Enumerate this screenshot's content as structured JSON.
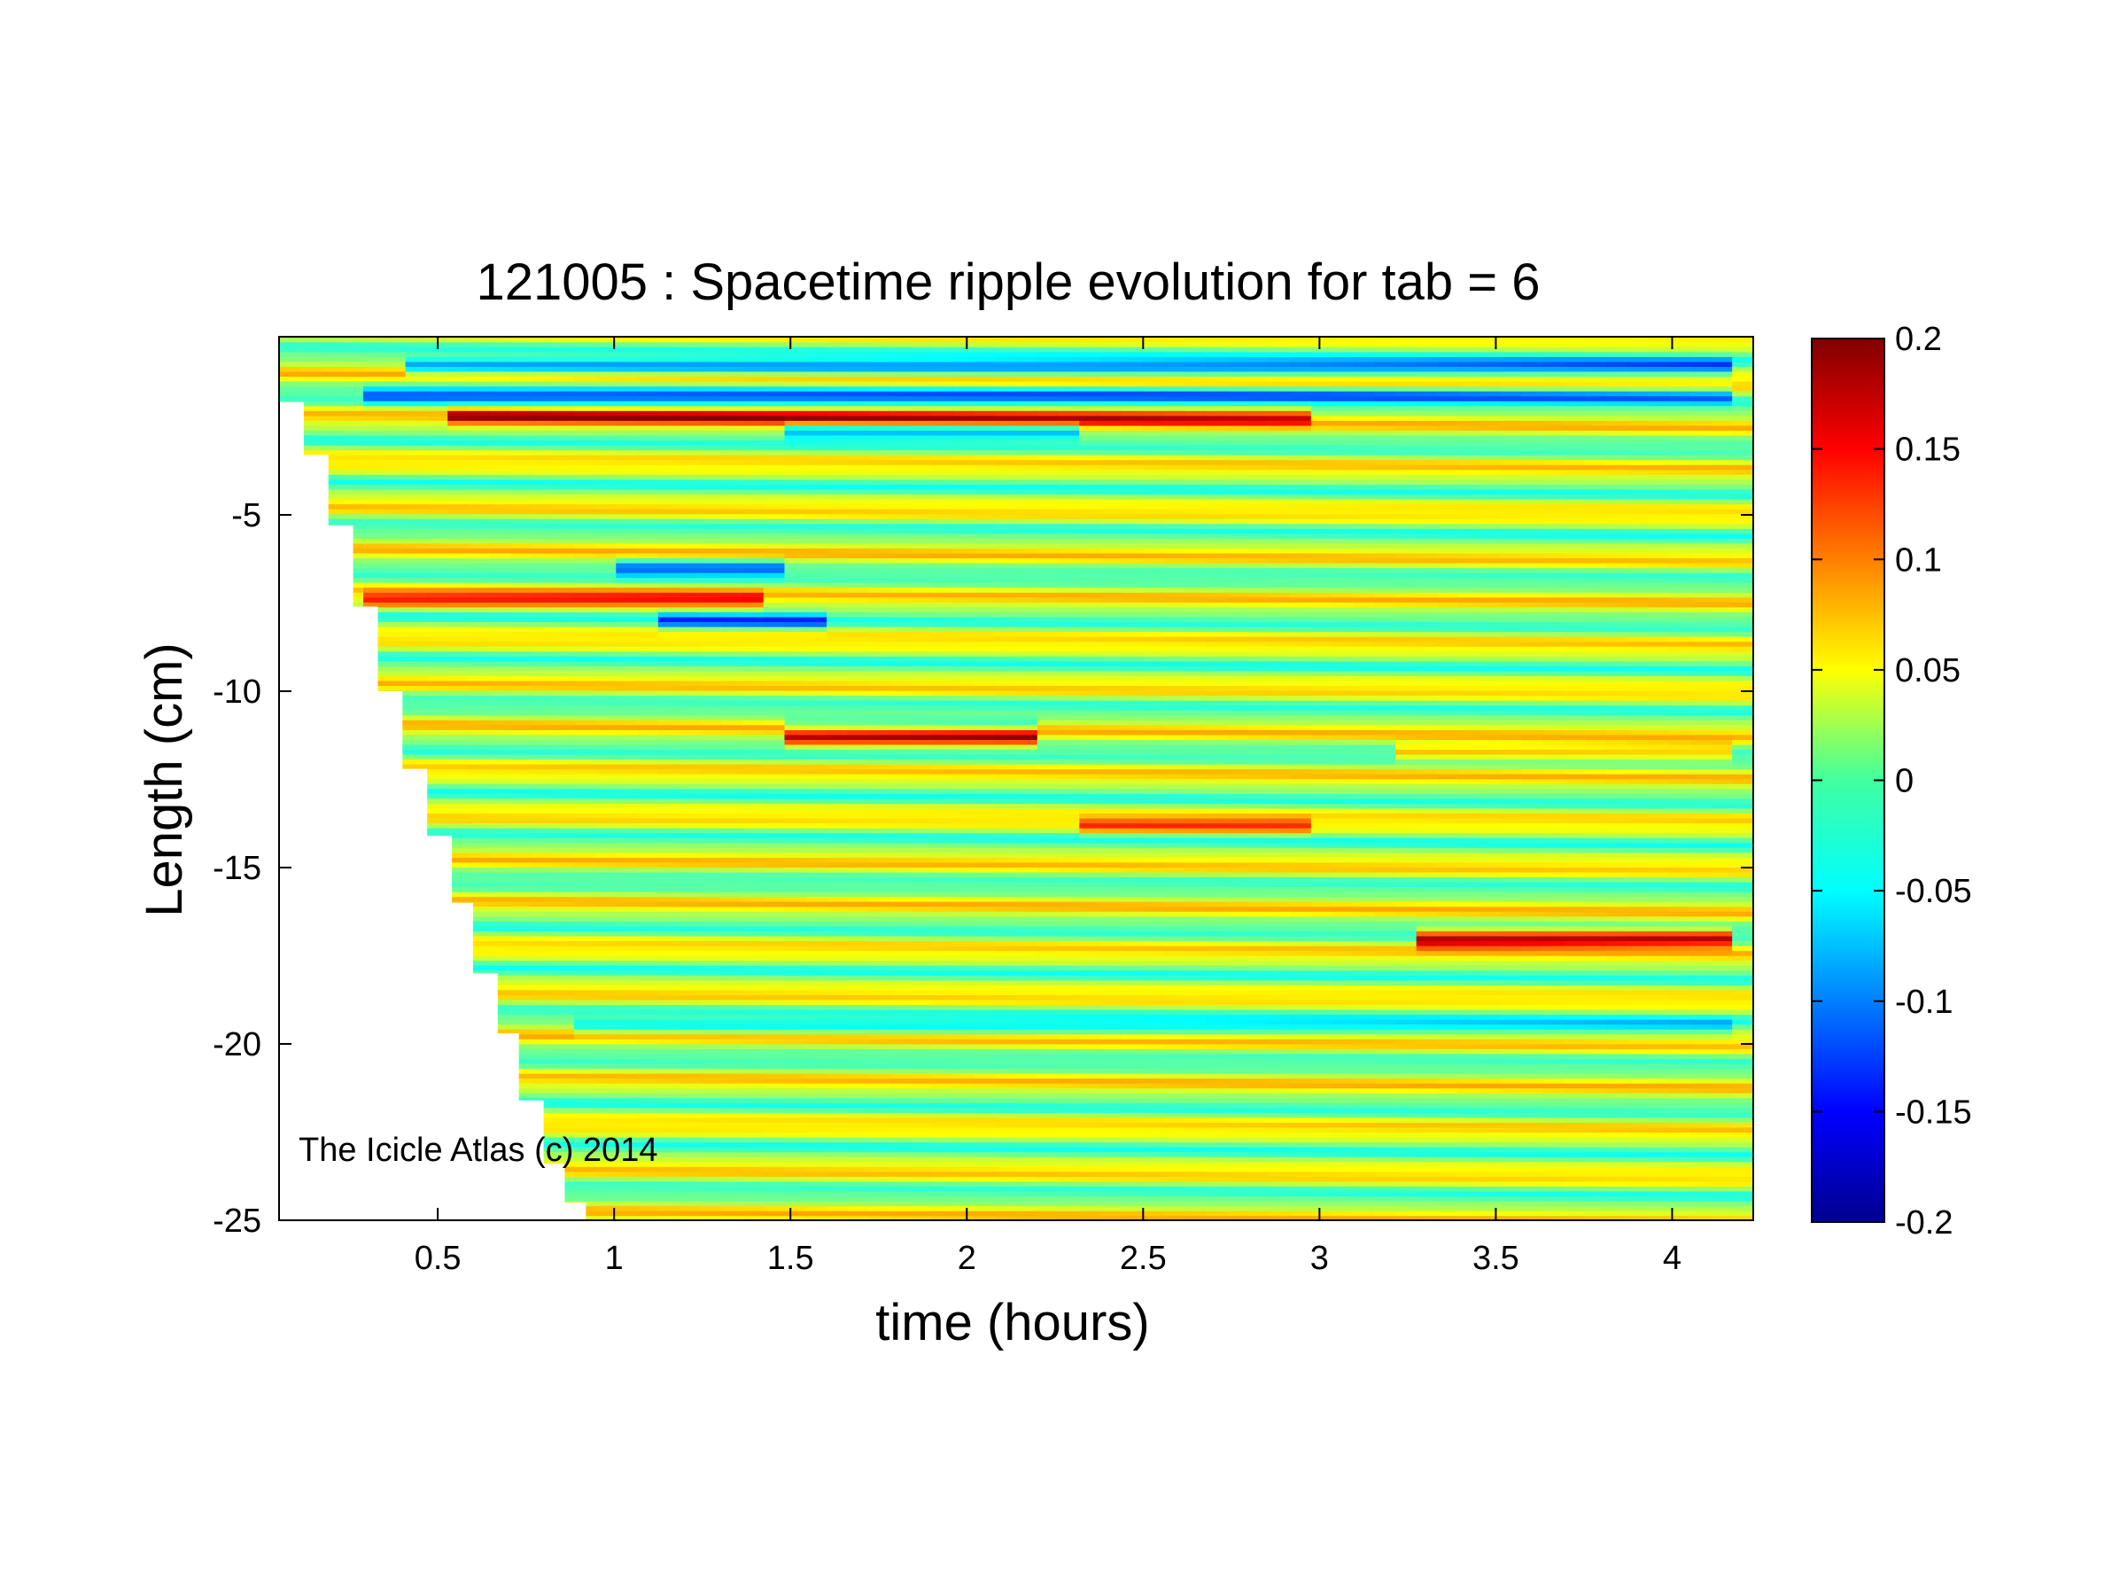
{
  "chart_data": {
    "type": "heatmap",
    "title": "121005 : Spacetime ripple evolution for tab = 6",
    "xlabel": "time (hours)",
    "ylabel": "Length (cm)",
    "xlim": [
      0.05,
      4.23
    ],
    "ylim": [
      -25,
      0.05
    ],
    "xticks": [
      0.5,
      1,
      1.5,
      2,
      2.5,
      3,
      3.5,
      4
    ],
    "xtick_labels": [
      "0.5",
      "1",
      "1.5",
      "2",
      "2.5",
      "3",
      "3.5",
      "4"
    ],
    "yticks": [
      -25,
      -20,
      -15,
      -10,
      -5
    ],
    "ytick_labels": [
      "-25",
      "-20",
      "-15",
      "-10",
      "-5"
    ],
    "colorbar": {
      "colormap": "jet",
      "range": [
        -0.2,
        0.2
      ],
      "ticks": [
        0.2,
        0.15,
        0.1,
        0.05,
        0,
        -0.05,
        -0.1,
        -0.15,
        -0.2
      ],
      "tick_labels": [
        "0.2",
        "0.15",
        "0.1",
        "0.05",
        "0",
        "-0.05",
        "-0.1",
        "-0.15",
        "-0.2"
      ]
    },
    "annotation": "The Icicle Atlas (c) 2014",
    "grid": false,
    "growth_front": [
      {
        "t": 0.05,
        "tip": -1.8
      },
      {
        "t": 0.12,
        "tip": -3.3
      },
      {
        "t": 0.19,
        "tip": -5.3
      },
      {
        "t": 0.26,
        "tip": -7.6
      },
      {
        "t": 0.33,
        "tip": -10.0
      },
      {
        "t": 0.4,
        "tip": -12.2
      },
      {
        "t": 0.47,
        "tip": -14.1
      },
      {
        "t": 0.54,
        "tip": -16.0
      },
      {
        "t": 0.6,
        "tip": -18.0
      },
      {
        "t": 0.67,
        "tip": -19.7
      },
      {
        "t": 0.73,
        "tip": -21.6
      },
      {
        "t": 0.8,
        "tip": -23.4
      },
      {
        "t": 0.86,
        "tip": -24.5
      },
      {
        "t": 0.92,
        "tip": -25.0
      }
    ],
    "features": [
      {
        "y": -0.8,
        "amp": -0.12,
        "t0": 0.4,
        "t1": 4.2
      },
      {
        "y": -1.6,
        "amp": -0.1,
        "t0": 0.3,
        "t1": 4.2
      },
      {
        "y": -2.2,
        "amp": 0.12,
        "t0": 0.5,
        "t1": 3.0
      },
      {
        "y": -2.6,
        "amp": -0.09,
        "t0": 1.5,
        "t1": 2.3
      },
      {
        "y": -6.5,
        "amp": -0.1,
        "t0": 1.0,
        "t1": 1.5
      },
      {
        "y": -7.4,
        "amp": 0.1,
        "t0": 0.3,
        "t1": 1.4
      },
      {
        "y": -8.0,
        "amp": -0.1,
        "t0": 1.1,
        "t1": 1.6
      },
      {
        "y": -11.3,
        "amp": 0.17,
        "t0": 1.5,
        "t1": 2.2
      },
      {
        "y": -11.0,
        "amp": -0.08,
        "t0": 1.5,
        "t1": 2.2
      },
      {
        "y": -11.7,
        "amp": 0.09,
        "t0": 3.2,
        "t1": 4.2
      },
      {
        "y": -13.8,
        "amp": 0.08,
        "t0": 2.3,
        "t1": 3.0
      },
      {
        "y": -17.0,
        "amp": 0.2,
        "t0": 3.25,
        "t1": 4.2
      },
      {
        "y": -19.5,
        "amp": -0.06,
        "t0": 0.9,
        "t1": 4.2
      }
    ]
  }
}
